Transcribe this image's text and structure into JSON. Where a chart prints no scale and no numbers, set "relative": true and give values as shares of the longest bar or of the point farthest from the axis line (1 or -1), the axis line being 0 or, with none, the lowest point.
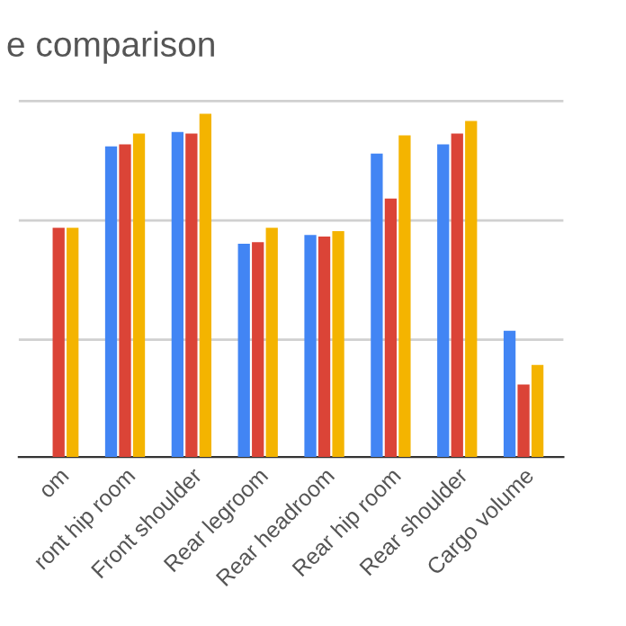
{
  "chart_data": {
    "type": "bar",
    "title": "e comparison",
    "relative": true,
    "ref_lines": [
      {
        "axis": "y",
        "value": 0.342,
        "color": "#d0d0d0"
      },
      {
        "axis": "y",
        "value": 0.689,
        "color": "#d0d0d0"
      },
      {
        "axis": "y",
        "value": 1.037,
        "color": "#d0d0d0"
      }
    ],
    "categories": [
      "om",
      "ront hip room",
      "Front shoulder",
      "Rear legroom",
      "Rear headroom",
      "Rear hip room",
      "Rear shoulder",
      "Cargo volume"
    ],
    "series": [
      {
        "color": "#4285f4",
        "values": [
          null,
          0.905,
          0.947,
          0.621,
          0.647,
          0.884,
          0.911,
          0.368
        ]
      },
      {
        "color": "#db4437",
        "values": [
          0.668,
          0.911,
          0.942,
          0.626,
          0.642,
          0.753,
          0.942,
          0.211
        ]
      },
      {
        "color": "#f4b400",
        "values": [
          0.668,
          0.942,
          1,
          0.668,
          0.658,
          0.937,
          0.979,
          0.268
        ]
      }
    ]
  }
}
